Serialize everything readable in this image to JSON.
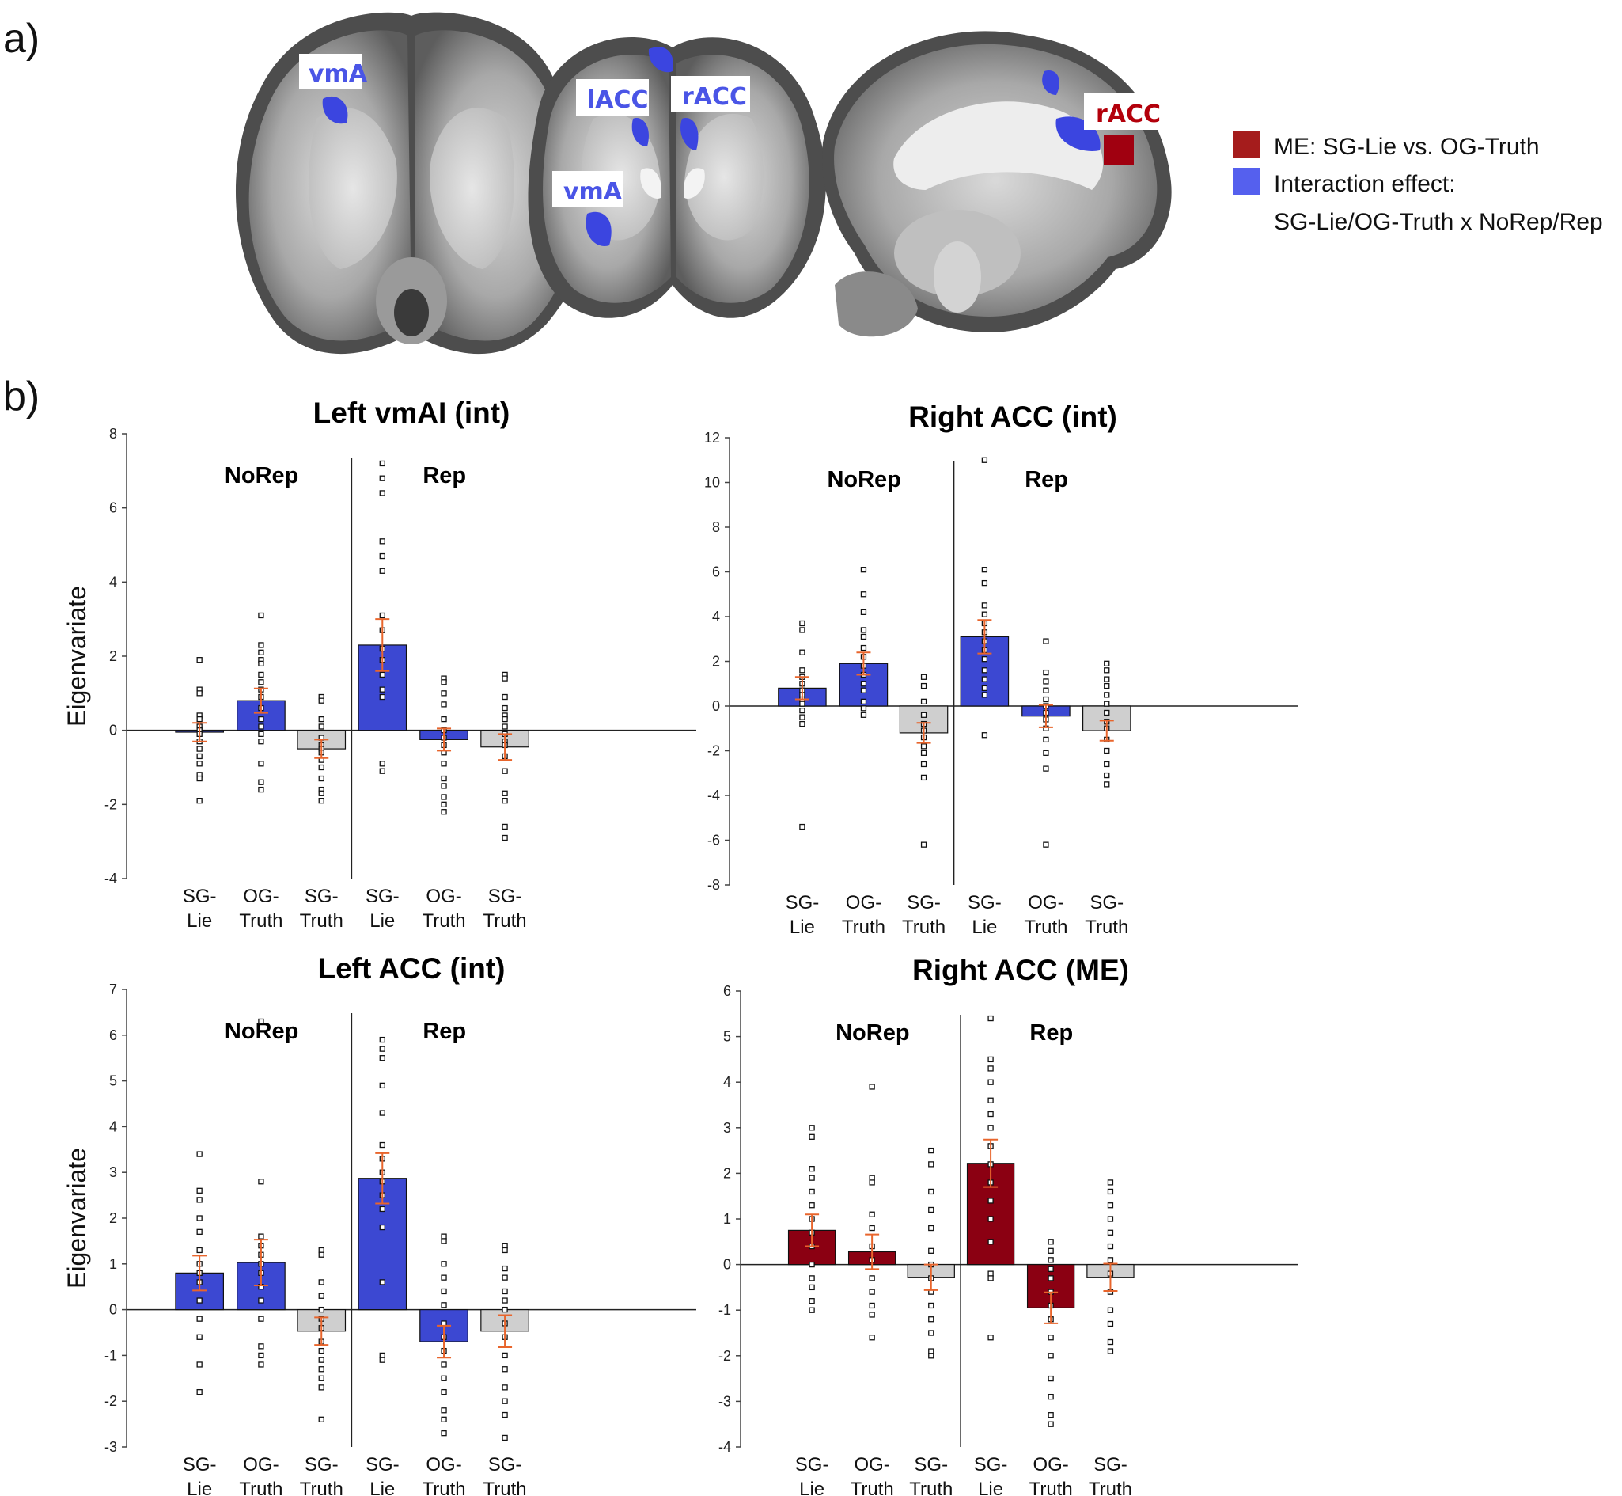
{
  "panel_a": {
    "label": "a)",
    "roi_labels": [
      {
        "id": "vma-axial",
        "text": "vmA",
        "color": "#4a55e6"
      },
      {
        "id": "lacc",
        "text": "lACC",
        "color": "#4a55e6"
      },
      {
        "id": "racc-coronal",
        "text": "rACC",
        "color": "#4a55e6"
      },
      {
        "id": "vma-coronal",
        "text": "vmA",
        "color": "#4a55e6"
      },
      {
        "id": "racc-sagittal",
        "text": "rACC",
        "color": "#b3000b"
      }
    ],
    "legend": [
      {
        "swatch": "#a51c1c",
        "lines": [
          "ME: SG-Lie vs. OG-Truth"
        ]
      },
      {
        "swatch": "#5560ee",
        "lines": [
          "Interaction effect:",
          "SG-Lie/OG-Truth x NoRep/Rep"
        ]
      }
    ]
  },
  "panel_b": {
    "label": "b)"
  },
  "colors": {
    "interaction": "#3c48d2",
    "main_effect": "#8b0012",
    "control": "#cfcfcf",
    "error_bar": "#e8652c"
  },
  "chart_data": [
    {
      "type": "bar",
      "title": "Left vmAI (int)",
      "ylabel": "Eigenvariate",
      "ylim": [
        -4,
        8
      ],
      "yticks": [
        -4,
        -2,
        0,
        2,
        4,
        6,
        8
      ],
      "groups": [
        "NoRep",
        "Rep"
      ],
      "categories": [
        [
          "SG-",
          "Lie"
        ],
        [
          "OG-",
          "Truth"
        ],
        [
          "SG-",
          "Truth"
        ],
        [
          "SG-",
          "Lie"
        ],
        [
          "OG-",
          "Truth"
        ],
        [
          "SG-",
          "Truth"
        ]
      ],
      "values": [
        -0.05,
        0.8,
        -0.5,
        2.3,
        -0.25,
        -0.45
      ],
      "errors": [
        0.25,
        0.33,
        0.25,
        0.7,
        0.3,
        0.35
      ],
      "bar_colors": [
        "interaction",
        "interaction",
        "control",
        "interaction",
        "interaction",
        "control"
      ],
      "points": [
        [
          1.9,
          1.1,
          1.0,
          0.4,
          0.3,
          0.1,
          0.0,
          -0.1,
          -0.3,
          -0.5,
          -0.7,
          -0.9,
          -1.2,
          -1.3,
          -1.9
        ],
        [
          3.1,
          2.3,
          2.1,
          1.9,
          1.8,
          1.5,
          1.3,
          1.1,
          0.9,
          0.6,
          0.3,
          0.1,
          -0.1,
          -0.3,
          -0.9,
          -1.4,
          -1.6
        ],
        [
          0.9,
          0.8,
          0.3,
          0.1,
          -0.2,
          -0.4,
          -0.5,
          -0.6,
          -0.8,
          -1.0,
          -1.3,
          -1.6,
          -1.7,
          -1.9
        ],
        [
          7.2,
          6.8,
          6.4,
          5.1,
          4.7,
          4.3,
          3.1,
          2.7,
          2.2,
          1.9,
          1.5,
          1.1,
          0.9,
          -0.9,
          -1.1
        ],
        [
          1.4,
          1.3,
          1.0,
          0.7,
          0.3,
          0.0,
          -0.2,
          -0.4,
          -0.6,
          -0.9,
          -1.3,
          -1.5,
          -1.8,
          -2.0,
          -2.2
        ],
        [
          1.5,
          1.4,
          0.9,
          0.6,
          0.4,
          0.3,
          0.1,
          -0.1,
          -0.3,
          -0.4,
          -0.7,
          -1.1,
          -1.7,
          -1.9,
          -2.6,
          -2.9
        ]
      ]
    },
    {
      "type": "bar",
      "title": "Right ACC (int)",
      "ylabel": "",
      "ylim": [
        -8,
        12
      ],
      "yticks": [
        -8,
        -6,
        -4,
        -2,
        0,
        2,
        4,
        6,
        8,
        10,
        12
      ],
      "groups": [
        "NoRep",
        "Rep"
      ],
      "categories": [
        [
          "SG-",
          "Lie"
        ],
        [
          "OG-",
          "Truth"
        ],
        [
          "SG-",
          "Truth"
        ],
        [
          "SG-",
          "Lie"
        ],
        [
          "OG-",
          "Truth"
        ],
        [
          "SG-",
          "Truth"
        ]
      ],
      "values": [
        0.8,
        1.9,
        -1.2,
        3.1,
        -0.45,
        -1.1
      ],
      "errors": [
        0.5,
        0.5,
        0.45,
        0.75,
        0.5,
        0.45
      ],
      "bar_colors": [
        "interaction",
        "interaction",
        "control",
        "interaction",
        "interaction",
        "control"
      ],
      "points": [
        [
          3.7,
          3.4,
          2.4,
          1.6,
          1.3,
          1.0,
          0.7,
          0.5,
          0.3,
          0.1,
          -0.2,
          -0.5,
          -0.8,
          -5.4
        ],
        [
          6.1,
          5.0,
          4.2,
          3.4,
          3.1,
          2.6,
          2.2,
          1.8,
          1.4,
          1.0,
          0.7,
          0.2,
          -0.1,
          -0.4
        ],
        [
          1.3,
          0.9,
          0.2,
          -0.4,
          -0.8,
          -1.1,
          -1.4,
          -1.8,
          -2.1,
          -2.6,
          -3.2,
          -6.2
        ],
        [
          11.0,
          6.1,
          5.5,
          4.5,
          4.1,
          3.7,
          3.3,
          2.9,
          2.5,
          2.1,
          1.6,
          1.2,
          0.8,
          0.5,
          -1.3
        ],
        [
          2.9,
          1.5,
          1.1,
          0.7,
          0.3,
          0.0,
          -0.3,
          -0.6,
          -1.0,
          -1.5,
          -2.1,
          -2.8,
          -6.2
        ],
        [
          1.9,
          1.6,
          1.2,
          0.9,
          0.5,
          0.1,
          -0.3,
          -0.7,
          -1.0,
          -1.5,
          -2.0,
          -2.6,
          -3.1,
          -3.5
        ]
      ]
    },
    {
      "type": "bar",
      "title": "Left ACC (int)",
      "ylabel": "Eigenvariate",
      "ylim": [
        -3,
        7
      ],
      "yticks": [
        -3,
        -2,
        -1,
        0,
        1,
        2,
        3,
        4,
        5,
        6,
        7
      ],
      "groups": [
        "NoRep",
        "Rep"
      ],
      "categories": [
        [
          "SG-",
          "Lie"
        ],
        [
          "OG-",
          "Truth"
        ],
        [
          "SG-",
          "Truth"
        ],
        [
          "SG-",
          "Lie"
        ],
        [
          "OG-",
          "Truth"
        ],
        [
          "SG-",
          "Truth"
        ]
      ],
      "values": [
        0.8,
        1.03,
        -0.47,
        2.87,
        -0.7,
        -0.47
      ],
      "errors": [
        0.38,
        0.5,
        0.3,
        0.55,
        0.35,
        0.35
      ],
      "bar_colors": [
        "interaction",
        "interaction",
        "control",
        "interaction",
        "interaction",
        "control"
      ],
      "points": [
        [
          3.4,
          2.6,
          2.4,
          2.0,
          1.7,
          1.3,
          1.0,
          0.8,
          0.6,
          0.2,
          -0.2,
          -0.6,
          -1.2,
          -1.8
        ],
        [
          6.3,
          2.8,
          1.6,
          1.4,
          1.2,
          1.0,
          0.8,
          0.5,
          0.2,
          -0.2,
          -0.8,
          -1.0,
          -1.2
        ],
        [
          1.3,
          1.2,
          0.6,
          0.3,
          0.0,
          -0.2,
          -0.4,
          -0.7,
          -0.9,
          -1.1,
          -1.3,
          -1.5,
          -1.7,
          -2.4
        ],
        [
          5.9,
          5.7,
          5.5,
          4.9,
          4.3,
          3.6,
          3.3,
          3.0,
          2.8,
          2.5,
          2.2,
          1.8,
          0.6,
          -1.0,
          -1.1
        ],
        [
          1.6,
          1.5,
          1.0,
          0.7,
          0.4,
          0.1,
          -0.3,
          -0.6,
          -0.9,
          -1.2,
          -1.5,
          -1.8,
          -2.2,
          -2.4,
          -2.7
        ],
        [
          1.4,
          1.3,
          0.9,
          0.7,
          0.4,
          0.2,
          0.0,
          -0.3,
          -0.6,
          -1.0,
          -1.3,
          -1.7,
          -2.0,
          -2.3,
          -2.8
        ]
      ]
    },
    {
      "type": "bar",
      "title": "Right ACC (ME)",
      "ylabel": "",
      "ylim": [
        -4,
        6
      ],
      "yticks": [
        -4,
        -3,
        -2,
        -1,
        0,
        1,
        2,
        3,
        4,
        5,
        6
      ],
      "groups": [
        "NoRep",
        "Rep"
      ],
      "categories": [
        [
          "SG-",
          "Lie"
        ],
        [
          "OG-",
          "Truth"
        ],
        [
          "SG-",
          "Truth"
        ],
        [
          "SG-",
          "Lie"
        ],
        [
          "OG-",
          "Truth"
        ],
        [
          "SG-",
          "Truth"
        ]
      ],
      "values": [
        0.75,
        0.28,
        -0.28,
        2.22,
        -0.95,
        -0.28
      ],
      "errors": [
        0.35,
        0.38,
        0.28,
        0.52,
        0.34,
        0.3
      ],
      "bar_colors": [
        "main_effect",
        "main_effect",
        "control",
        "main_effect",
        "main_effect",
        "control"
      ],
      "points": [
        [
          3.0,
          2.8,
          2.1,
          1.9,
          1.6,
          1.3,
          1.0,
          0.7,
          0.4,
          0.0,
          -0.3,
          -0.5,
          -0.8,
          -1.0
        ],
        [
          3.9,
          1.9,
          1.8,
          1.1,
          0.8,
          0.4,
          0.1,
          -0.3,
          -0.6,
          -0.9,
          -1.1,
          -1.6
        ],
        [
          2.5,
          2.2,
          1.6,
          1.2,
          0.8,
          0.3,
          0.0,
          -0.3,
          -0.6,
          -0.9,
          -1.2,
          -1.5,
          -1.9,
          -2.0
        ],
        [
          5.4,
          4.5,
          4.3,
          4.0,
          3.6,
          3.3,
          3.0,
          2.6,
          2.2,
          1.8,
          1.4,
          1.0,
          0.5,
          -0.2,
          -0.3,
          -1.6
        ],
        [
          0.5,
          0.3,
          0.1,
          -0.1,
          -0.3,
          -0.6,
          -0.9,
          -1.2,
          -1.6,
          -2.0,
          -2.5,
          -2.9,
          -3.3,
          -3.5
        ],
        [
          1.8,
          1.6,
          1.3,
          1.0,
          0.7,
          0.4,
          0.1,
          -0.2,
          -0.6,
          -1.0,
          -1.3,
          -1.7,
          -1.9
        ]
      ]
    }
  ]
}
